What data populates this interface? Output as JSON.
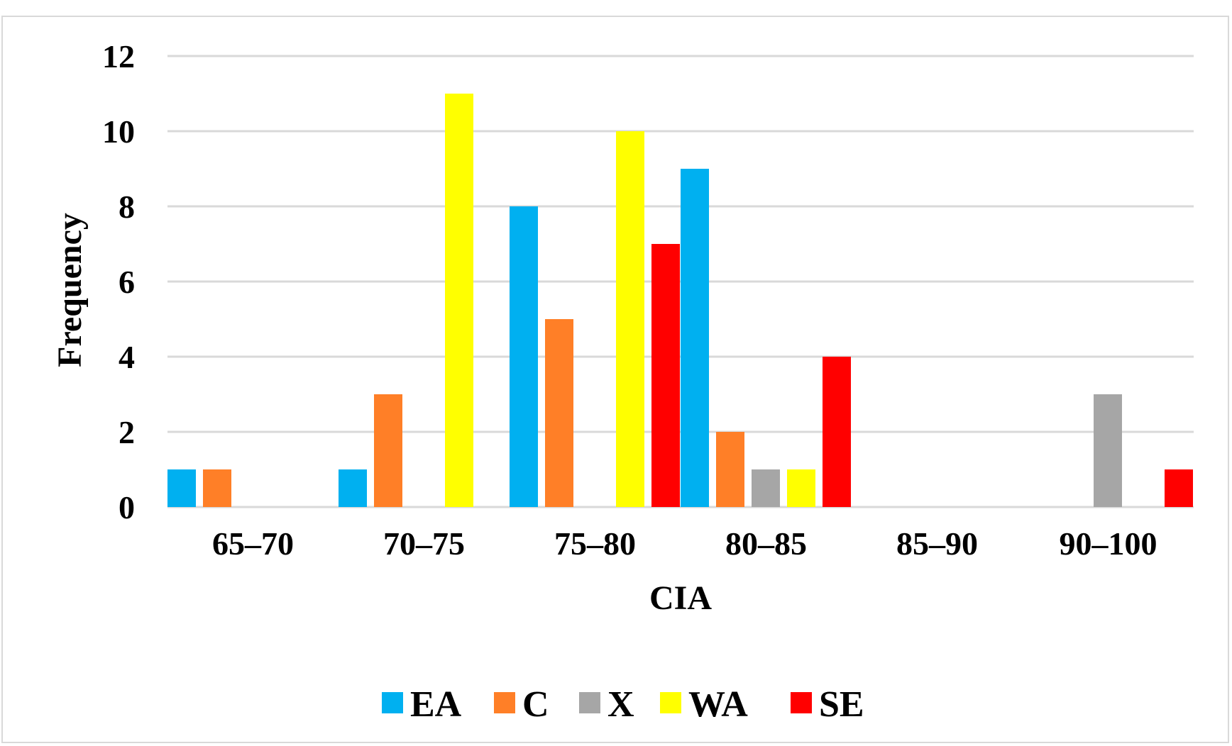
{
  "chart_data": {
    "type": "bar",
    "title": "",
    "xlabel": "CIA",
    "ylabel": "Frequency",
    "ylim": [
      0,
      12
    ],
    "yticks": [
      0,
      2,
      4,
      6,
      8,
      10,
      12
    ],
    "grid": true,
    "legend_position": "bottom",
    "categories": [
      "65–70",
      "70–75",
      "75–80",
      "80–85",
      "85–90",
      "90–100"
    ],
    "series": [
      {
        "name": "EA",
        "color": "#00b0f0",
        "values": [
          1,
          1,
          8,
          9,
          0,
          0
        ]
      },
      {
        "name": "C",
        "color": "#ff7f27",
        "values": [
          1,
          3,
          5,
          2,
          0,
          0
        ]
      },
      {
        "name": "X",
        "color": "#a6a6a6",
        "values": [
          0,
          0,
          0,
          1,
          0,
          3
        ]
      },
      {
        "name": "WA",
        "color": "#ffff00",
        "values": [
          0,
          11,
          10,
          1,
          0,
          0
        ]
      },
      {
        "name": "SE",
        "color": "#ff0000",
        "values": [
          0,
          0,
          7,
          4,
          0,
          1
        ]
      }
    ]
  }
}
